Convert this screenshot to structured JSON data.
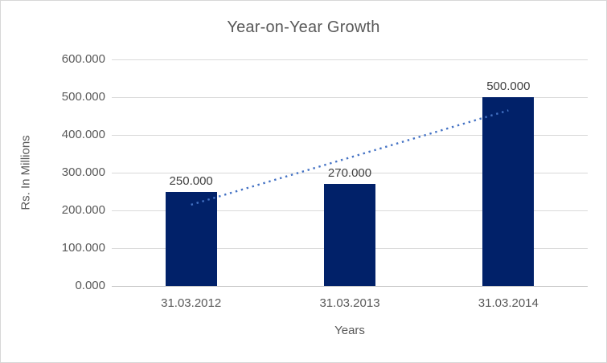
{
  "chart_data": {
    "type": "bar",
    "title": "Year-on-Year Growth",
    "xlabel": "Years",
    "ylabel": "Rs. In Millions",
    "categories": [
      "31.03.2012",
      "31.03.2013",
      "31.03.2014"
    ],
    "values": [
      250,
      270,
      500
    ],
    "data_labels": [
      "250.000",
      "270.000",
      "500.000"
    ],
    "y_ticks": [
      {
        "value": 0,
        "label": "0.000"
      },
      {
        "value": 100,
        "label": "100.000"
      },
      {
        "value": 200,
        "label": "200.000"
      },
      {
        "value": 300,
        "label": "300.000"
      },
      {
        "value": 400,
        "label": "400.000"
      },
      {
        "value": 500,
        "label": "500.000"
      },
      {
        "value": 600,
        "label": "600.000"
      }
    ],
    "ylim": [
      0,
      600
    ],
    "grid": true,
    "legend": "none",
    "trendline": {
      "style": "dotted",
      "start_value": 215,
      "end_value": 465
    },
    "colors": {
      "bar": "#012169",
      "trendline": "#4472c4",
      "gridline": "#d9d9d9",
      "axis_line": "#bfbfbf",
      "axis_text": "#595959",
      "data_label_text": "#404040",
      "title_text": "#595959",
      "background": "#ffffff",
      "border": "#d7d7d7"
    }
  }
}
